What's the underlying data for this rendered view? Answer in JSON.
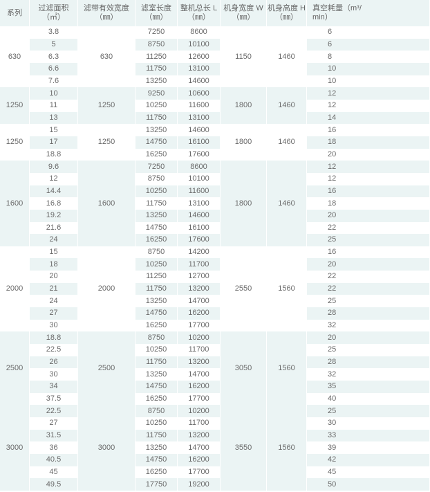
{
  "headers": {
    "series": "系列",
    "area": "过滤面积\n（㎡）",
    "belt_width": "滤带有效宽度\n（㎜）",
    "chamber_length": "滤室长度\n（㎜）",
    "total_length": "整机总长 L\n（㎜）",
    "body_width": "机身宽度 W\n（㎜）",
    "body_height": "机身高度 H\n（㎜）",
    "vacuum": "真空耗量（m³/\nmin）"
  },
  "colors": {
    "stripe": "#ebf4f4",
    "text": "#6a6a6a"
  },
  "groups": [
    {
      "series": "630",
      "belt_width": "630",
      "body_width": "1150",
      "body_height": "1460",
      "rows": [
        [
          "3.8",
          "7250",
          "8600",
          "6"
        ],
        [
          "5",
          "8750",
          "10100",
          "6"
        ],
        [
          "6.3",
          "11250",
          "12600",
          "8"
        ],
        [
          "6.6",
          "11750",
          "13100",
          "10"
        ],
        [
          "7.6",
          "13250",
          "14600",
          "10"
        ]
      ]
    },
    {
      "series": "1250",
      "belt_width": "1250",
      "body_width": "1800",
      "body_height": "1460",
      "rows": [
        [
          "10",
          "9250",
          "10600",
          "12"
        ],
        [
          "11",
          "10250",
          "11600",
          "12"
        ],
        [
          "13",
          "11750",
          "13100",
          "14"
        ]
      ]
    },
    {
      "series": "1250",
      "belt_width": "1250",
      "body_width": "1800",
      "body_height": "1460",
      "rows": [
        [
          "15",
          "13250",
          "14600",
          "16"
        ],
        [
          "17",
          "14750",
          "16100",
          "18"
        ],
        [
          "18.8",
          "16250",
          "17600",
          "20"
        ]
      ]
    },
    {
      "series": "1600",
      "belt_width": "1600",
      "body_width": "1800",
      "body_height": "1460",
      "rows": [
        [
          "9.6",
          "7250",
          "8600",
          "12"
        ],
        [
          "12",
          "8750",
          "10100",
          "12"
        ],
        [
          "14.4",
          "10250",
          "11600",
          "16"
        ],
        [
          "16.8",
          "11750",
          "13100",
          "18"
        ],
        [
          "19.2",
          "13250",
          "14600",
          "20"
        ],
        [
          "21.6",
          "14750",
          "16100",
          "22"
        ],
        [
          "24",
          "16250",
          "17600",
          "25"
        ]
      ]
    },
    {
      "series": "2000",
      "belt_width": "2000",
      "body_width": "2550",
      "body_height": "1560",
      "rows": [
        [
          "15",
          "8750",
          "14200",
          "16"
        ],
        [
          "18",
          "10250",
          "11700",
          "20"
        ],
        [
          "20",
          "11250",
          "12700",
          "22"
        ],
        [
          "21",
          "11750",
          "13200",
          "22"
        ],
        [
          "24",
          "13250",
          "14700",
          "25"
        ],
        [
          "27",
          "14750",
          "16200",
          "28"
        ],
        [
          "30",
          "16250",
          "17700",
          "32"
        ]
      ]
    },
    {
      "series": "2500",
      "belt_width": "2500",
      "body_width": "3050",
      "body_height": "1560",
      "rows": [
        [
          "18.8",
          "8750",
          "10200",
          "20"
        ],
        [
          "22.5",
          "10250",
          "11700",
          "25"
        ],
        [
          "26",
          "11750",
          "13200",
          "28"
        ],
        [
          "30",
          "13250",
          "14700",
          "32"
        ],
        [
          "34",
          "14750",
          "16200",
          "35"
        ],
        [
          "37.5",
          "16250",
          "17700",
          "40"
        ]
      ]
    },
    {
      "series": "3000",
      "belt_width": "3000",
      "body_width": "3550",
      "body_height": "1560",
      "rows": [
        [
          "22.5",
          "8750",
          "10200",
          "25"
        ],
        [
          "27",
          "10250",
          "11700",
          "30"
        ],
        [
          "31.5",
          "11750",
          "13200",
          "33"
        ],
        [
          "36",
          "13250",
          "14700",
          "39"
        ],
        [
          "40.5",
          "14750",
          "16200",
          "42"
        ],
        [
          "45",
          "16250",
          "17700",
          "45"
        ],
        [
          "49.5",
          "17750",
          "19200",
          "50"
        ]
      ]
    }
  ]
}
